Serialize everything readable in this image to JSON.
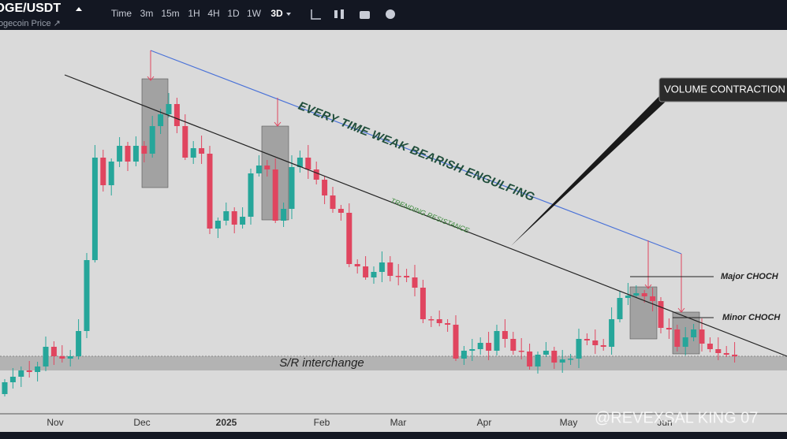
{
  "header": {
    "symbol": "DOGE/USDT",
    "subtitle": "Dogecoin Price ↗",
    "toolbar": [
      "Time",
      "3m",
      "15m",
      "1H",
      "4H",
      "1D",
      "1W",
      "3D"
    ]
  },
  "x_axis": [
    "Nov",
    "Dec",
    "2025",
    "Feb",
    "Mar",
    "Apr",
    "May",
    "Jun"
  ],
  "annotations": {
    "pattern": "EVERY TIME WEAK BEARISH ENGULFING",
    "resistance": "TRENDING RESISTANCE",
    "volume": "VOLUME CONTRACTION",
    "major": "Major CHOCH",
    "minor": "Minor CHOCH",
    "support": "S/R interchange"
  },
  "watermark": "@REVEXSAL KING 07"
}
